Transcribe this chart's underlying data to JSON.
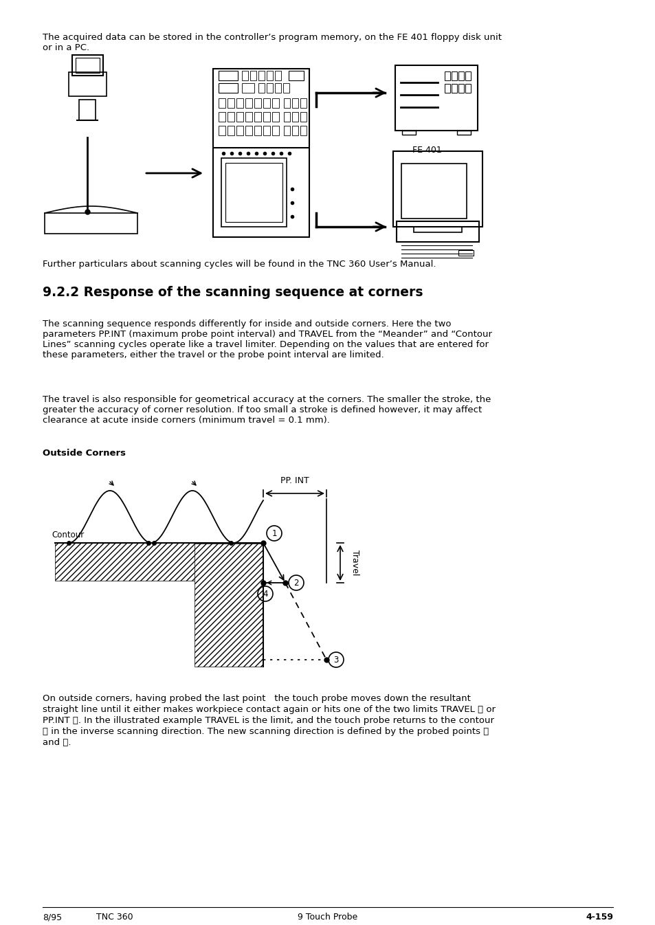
{
  "page_text_top": "The acquired data can be stored in the controller’s program memory, on the FE 401 floppy disk unit\nor in a PC.",
  "further_text": "Further particulars about scanning cycles will be found in the TNC 360 User’s Manual.",
  "section_title": "9.2.2 Response of the scanning sequence at corners",
  "para1": "The scanning sequence responds differently for inside and outside corners. Here the two\nparameters PP.INT (maximum probe point interval) and TRAVEL from the “Meander” and “Contour\nLines” scanning cycles operate like a travel limiter. Depending on the values that are entered for\nthese parameters, either the travel or the probe point interval are limited.",
  "para2": "The travel is also responsible for geometrical accuracy at the corners. The smaller the stroke, the\ngreater the accuracy of corner resolution. If too small a stroke is defined however, it may affect\nclearance at acute inside corners (minimum travel = 0.1 mm).",
  "outside_corners_label": "Outside Corners",
  "pp_int_label": "PP. INT",
  "travel_label": "Travel",
  "contour_label": "Contour",
  "fe401_label": "FE 401",
  "footer_left": "8/95",
  "footer_center_left": "TNC 360",
  "footer_center": "9 Touch Probe",
  "footer_right": "4-159",
  "bottom_text1": "On outside corners, having probed the last point   the touch probe moves down the resultant",
  "bottom_text2": "straight line until it either makes workpiece contact again or hits one of the two limits TRAVEL Ⓐ or",
  "bottom_text3": "PP.INT Ⓑ. In the illustrated example TRAVEL is the limit, and the touch probe returns to the contour",
  "bottom_text4": "Ⓒ in the inverse scanning direction. The new scanning direction is defined by the probed points ⒵",
  "bottom_text5": "and Ⓒ.",
  "background_color": "#ffffff",
  "text_color": "#000000"
}
